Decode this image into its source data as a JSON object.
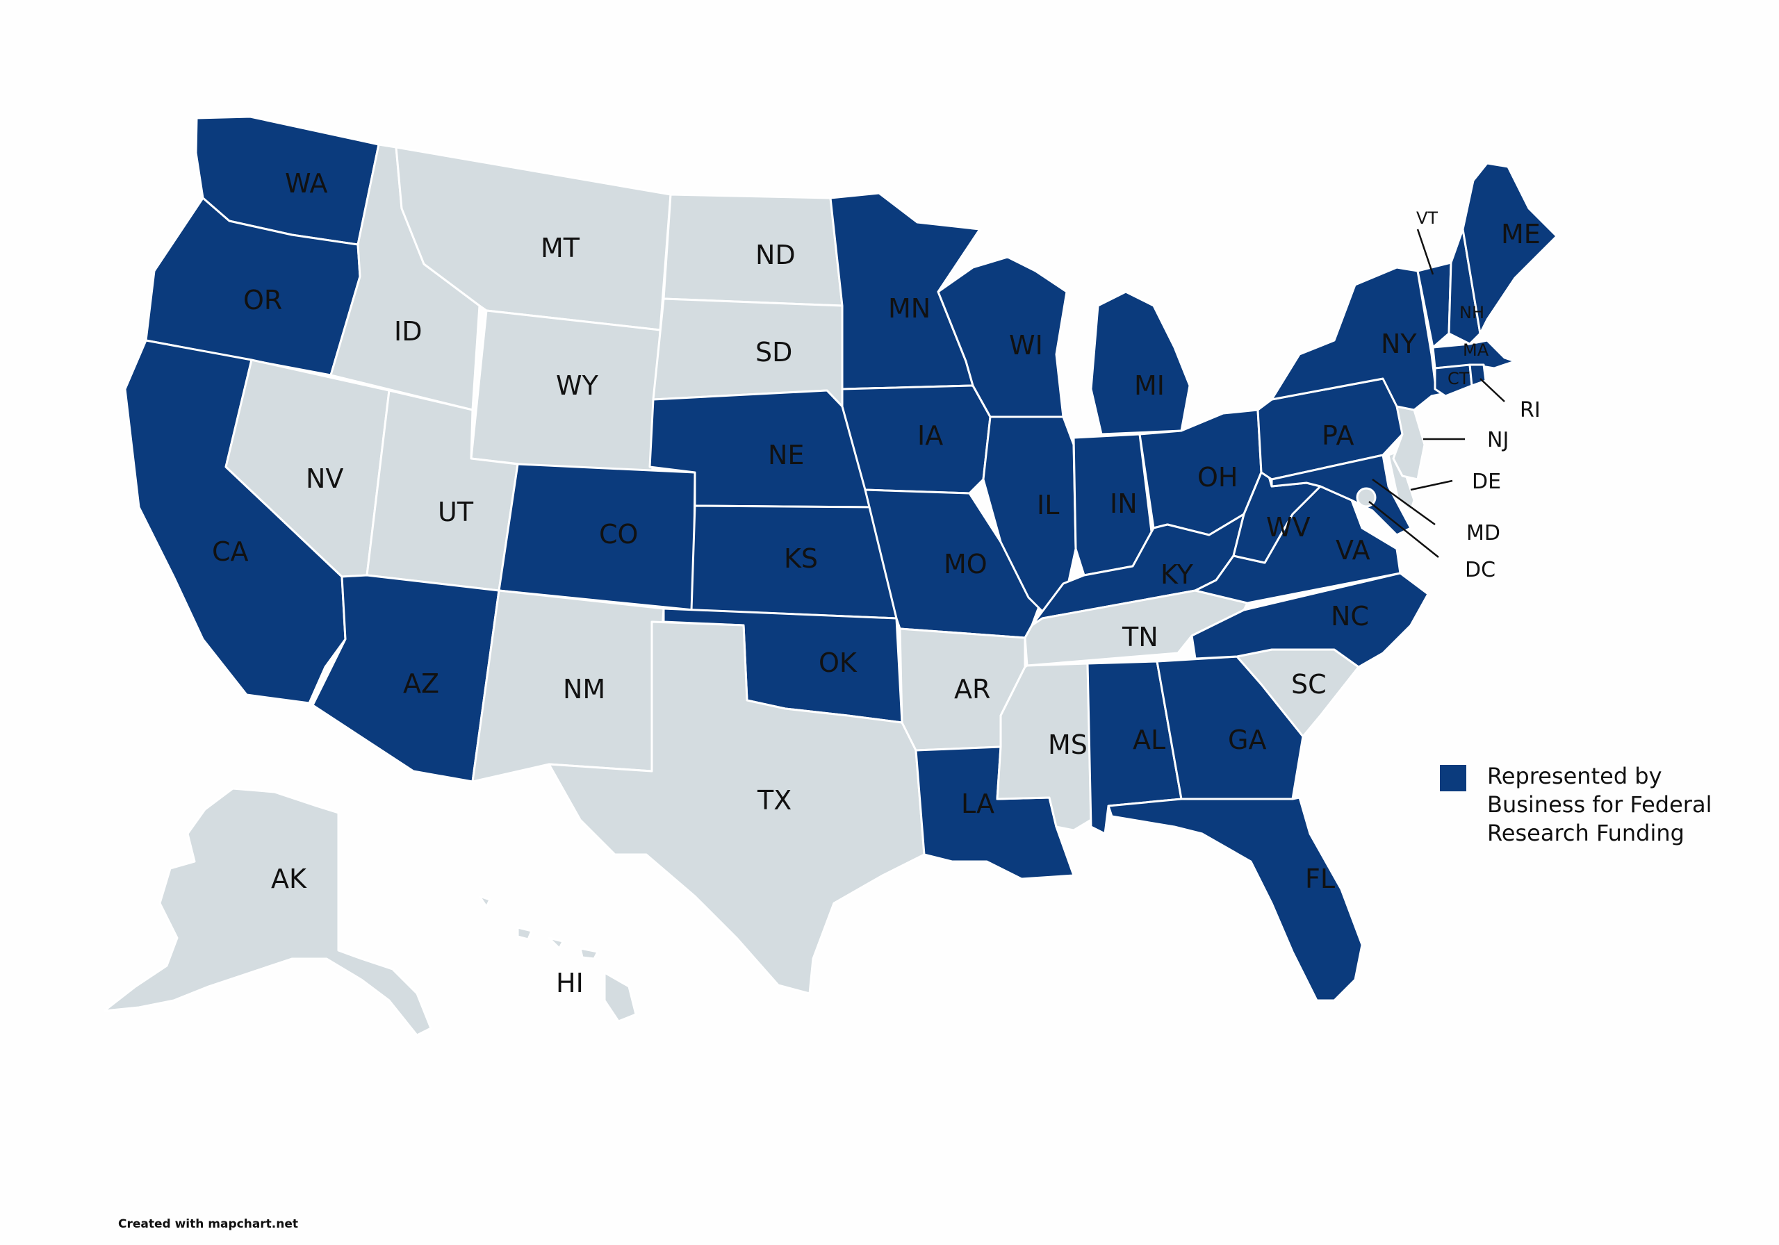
{
  "map": {
    "colors": {
      "represented": "#0b3b7d",
      "not_represented": "#d4dce0",
      "border": "#ffffff",
      "background": "#fefefe"
    },
    "states": [
      {
        "code": "WA",
        "represented": true
      },
      {
        "code": "OR",
        "represented": true
      },
      {
        "code": "CA",
        "represented": true
      },
      {
        "code": "ID",
        "represented": false
      },
      {
        "code": "NV",
        "represented": false
      },
      {
        "code": "MT",
        "represented": false
      },
      {
        "code": "WY",
        "represented": false
      },
      {
        "code": "UT",
        "represented": false
      },
      {
        "code": "AZ",
        "represented": true
      },
      {
        "code": "CO",
        "represented": true
      },
      {
        "code": "NM",
        "represented": false
      },
      {
        "code": "ND",
        "represented": false
      },
      {
        "code": "SD",
        "represented": false
      },
      {
        "code": "NE",
        "represented": true
      },
      {
        "code": "KS",
        "represented": true
      },
      {
        "code": "OK",
        "represented": true
      },
      {
        "code": "TX",
        "represented": false
      },
      {
        "code": "MN",
        "represented": true
      },
      {
        "code": "IA",
        "represented": true
      },
      {
        "code": "MO",
        "represented": true
      },
      {
        "code": "AR",
        "represented": false
      },
      {
        "code": "LA",
        "represented": true
      },
      {
        "code": "WI",
        "represented": true
      },
      {
        "code": "IL",
        "represented": true
      },
      {
        "code": "MI",
        "represented": true
      },
      {
        "code": "IN",
        "represented": true
      },
      {
        "code": "OH",
        "represented": true
      },
      {
        "code": "KY",
        "represented": true
      },
      {
        "code": "TN",
        "represented": false
      },
      {
        "code": "MS",
        "represented": false
      },
      {
        "code": "AL",
        "represented": true
      },
      {
        "code": "GA",
        "represented": true
      },
      {
        "code": "FL",
        "represented": true
      },
      {
        "code": "SC",
        "represented": false
      },
      {
        "code": "NC",
        "represented": true
      },
      {
        "code": "VA",
        "represented": true
      },
      {
        "code": "WV",
        "represented": true
      },
      {
        "code": "PA",
        "represented": true
      },
      {
        "code": "NY",
        "represented": true
      },
      {
        "code": "VT",
        "represented": true
      },
      {
        "code": "NH",
        "represented": true
      },
      {
        "code": "ME",
        "represented": true
      },
      {
        "code": "MA",
        "represented": true
      },
      {
        "code": "RI",
        "represented": true
      },
      {
        "code": "CT",
        "represented": true
      },
      {
        "code": "NJ",
        "represented": false
      },
      {
        "code": "DE",
        "represented": false
      },
      {
        "code": "MD",
        "represented": true
      },
      {
        "code": "DC",
        "represented": false
      },
      {
        "code": "AK",
        "represented": false
      },
      {
        "code": "HI",
        "represented": false
      }
    ]
  },
  "legend": {
    "label": "Represented by Business for Federal Research Funding"
  },
  "credit": "Created with mapchart.net"
}
